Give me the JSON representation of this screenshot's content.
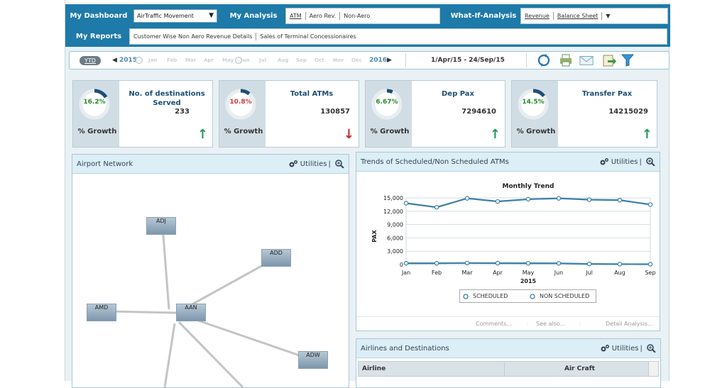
{
  "nav": {
    "dashboard_label": "My Dashboard",
    "dashboard_select": "AirTraffic Movement",
    "analysis_label": "My Analysis",
    "analysis_items": [
      "ATM",
      "Aero Rev.",
      "Non-Aero"
    ],
    "whatif_label": "What-If-Analysis",
    "whatif_items": [
      "Revenue",
      "Balance Sheet"
    ],
    "whatif_dropdown": "▼",
    "reports_label": "My Reports",
    "reports_items": [
      "Customer Wise Non Aero Revenue Details",
      "Sales of Terminal Concessionaires"
    ]
  },
  "toolbar": {
    "ytd_label": "YTD",
    "year_start": "2015",
    "year_end": "2016",
    "months": [
      "Jan",
      "Feb",
      "Mar",
      "Apr",
      "May",
      "Jun",
      "Jul",
      "Aug",
      "Sep",
      "Oct",
      "Nov",
      "Dec"
    ],
    "date_range": "1/Apr/15 - 24/Sep/15",
    "icons": [
      "refresh-icon",
      "print-icon",
      "mail-icon",
      "export-icon",
      "filter-icon"
    ]
  },
  "kpis": [
    {
      "title": "No. of destinations Served",
      "value": "233",
      "growth": "16.2%",
      "growth_label": "% Growth",
      "direction": "up",
      "pct_color": "#2a8a2a",
      "arrow_color": "#1d9a5b"
    },
    {
      "title": "Total ATMs",
      "value": "130857",
      "growth": "10.8%",
      "growth_label": "% Growth",
      "direction": "down",
      "pct_color": "#d23a3a",
      "arrow_color": "#c62828"
    },
    {
      "title": "Dep Pax",
      "value": "7294610",
      "growth": "6.67%",
      "growth_label": "% Growth",
      "direction": "up",
      "pct_color": "#2a8a2a",
      "arrow_color": "#1d9a5b"
    },
    {
      "title": "Transfer Pax",
      "value": "14215029",
      "growth": "14.5%",
      "growth_label": "% Growth",
      "direction": "up",
      "pct_color": "#2a8a2a",
      "arrow_color": "#1d9a5b"
    }
  ],
  "kpi_arrows": {
    "up": "↑",
    "down": "↓"
  },
  "network": {
    "title": "Airport Network",
    "utilities": "Utilities",
    "nodes": [
      "ADJ",
      "ADD",
      "AMD",
      "AAN",
      "ADW"
    ]
  },
  "trends": {
    "title": "Trends of Scheduled/Non Scheduled ATMs",
    "utilities": "Utilities",
    "footer_links": [
      "Comments...",
      "See also...",
      "Detail Analysis..."
    ]
  },
  "airlines": {
    "title": "Airlines and Destinations",
    "utilities": "Utilities",
    "columns": [
      "Airline",
      "Air Craft"
    ]
  },
  "chart_data": {
    "type": "line",
    "title": "Monthly Trend",
    "xlabel": "2015",
    "ylabel": "PAX",
    "categories": [
      "Jan",
      "Feb",
      "Mar",
      "Apr",
      "May",
      "Jun",
      "Jul",
      "Aug",
      "Sep"
    ],
    "y_ticks": [
      "0",
      "3,000",
      "6,000",
      "9,000",
      "12,000",
      "15,000"
    ],
    "ylim": [
      0,
      15000
    ],
    "grid": true,
    "legend_position": "bottom",
    "series": [
      {
        "name": "SCHEDULED",
        "values": [
          13800,
          12900,
          14900,
          14200,
          14700,
          14900,
          14600,
          14500,
          13500
        ],
        "color": "#3d7fa6"
      },
      {
        "name": "NON SCHEDULED",
        "values": [
          300,
          300,
          350,
          320,
          300,
          280,
          150,
          100,
          80
        ],
        "color": "#3d7fa6"
      }
    ]
  }
}
